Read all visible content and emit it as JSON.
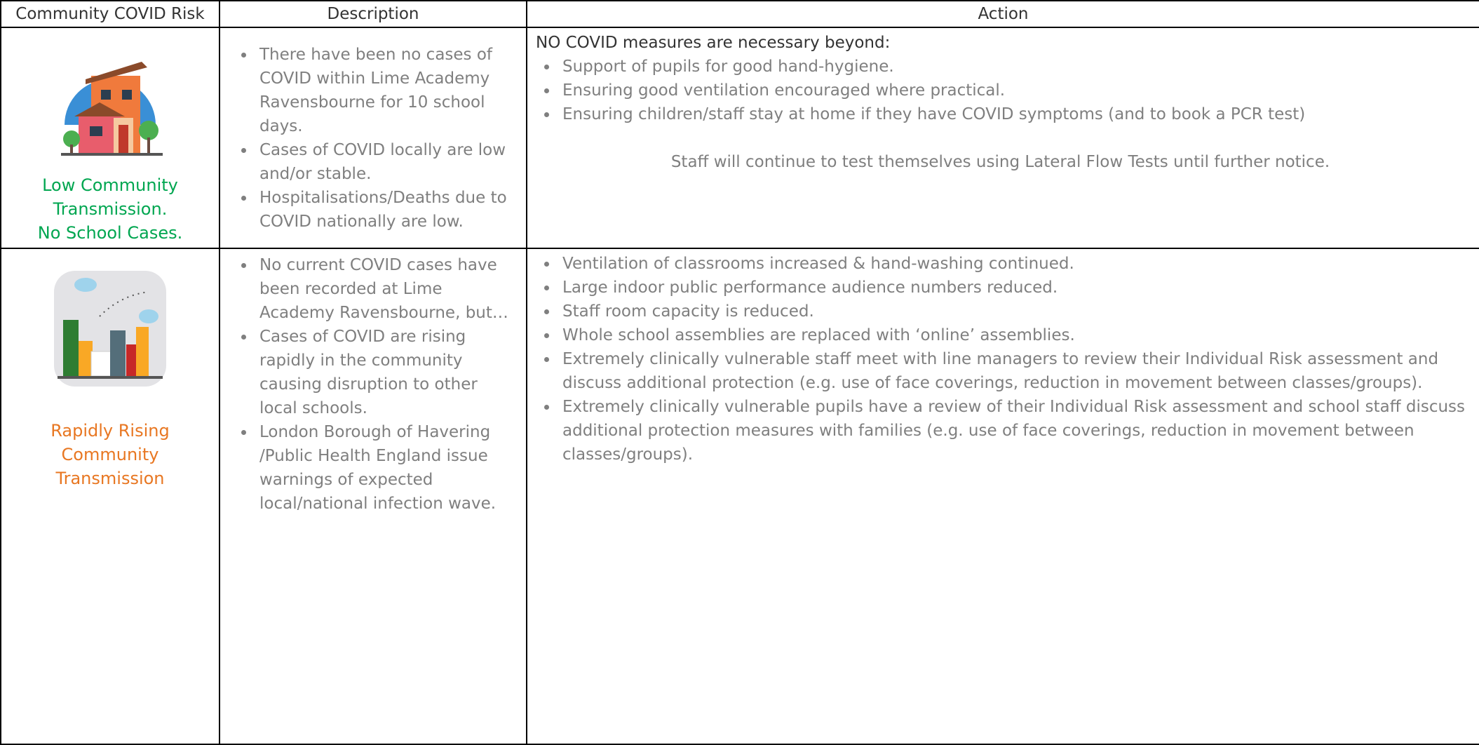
{
  "table": {
    "header": [
      "Community COVID Risk",
      "Description",
      "Action"
    ],
    "rows": [
      {
        "risk": [
          "Low Community",
          "Transmission.",
          "No School Cases."
        ],
        "description": [
          "There have been no cases of COVID within Lime Academy Ravensbourne for 10 school days.",
          "Cases of COVID locally are low and/or stable.",
          "Hospitalisations/Deaths due to COVID nationally are low."
        ],
        "action_intro": "NO COVID measures are necessary beyond:",
        "actions": [
          "Support of pupils for good hand-hygiene.",
          "Ensuring good ventilation encouraged where practical.",
          "Ensuring children/staff stay at home if they have COVID symptoms (and to book a PCR test)"
        ],
        "action_note": "Staff will continue to test themselves using Lateral Flow Tests until further notice."
      },
      {
        "risk": [
          "Rapidly Rising",
          "Community",
          "Transmission"
        ],
        "description": [
          "No current COVID cases have been recorded at Lime Academy Ravensbourne, but…",
          "Cases of COVID are rising rapidly in the community causing disruption to other local schools.",
          "London Borough of Havering /Public Health England issue warnings of expected local/national infection wave."
        ],
        "actions": [
          "Ventilation of classrooms increased & hand-washing continued.",
          "Large indoor public performance audience numbers reduced.",
          "Staff room capacity is reduced.",
          "Whole school assemblies are replaced with ‘online’ assemblies.",
          "Extremely clinically vulnerable staff meet with line managers to review their Individual Risk assessment and discuss additional protection (e.g. use of face coverings, reduction in movement between classes/groups).",
          "Extremely clinically vulnerable pupils have a review of their Individual Risk assessment and school staff discuss additional protection measures with families (e.g. use of face coverings, reduction in movement between classes/groups)."
        ]
      }
    ]
  }
}
